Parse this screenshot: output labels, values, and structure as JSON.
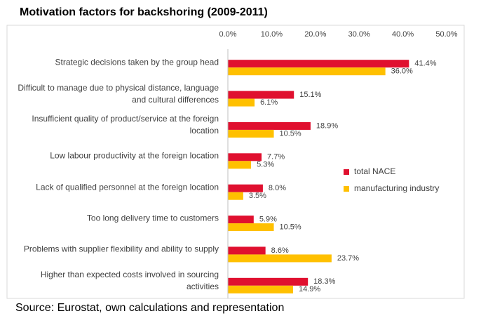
{
  "chart_data": {
    "type": "bar",
    "orientation": "horizontal",
    "title": "Motivation factors for backshoring (2009-2011)",
    "source": "Source: Eurostat, own calculations and representation",
    "categories": [
      "Strategic decisions taken by the group head",
      "Difficult to manage due to physical distance, language and cultural differences",
      "Insufficient quality of product/service at the foreign location",
      "Low labour productivity at the foreign location",
      "Lack of qualified personnel at the foreign location",
      "Too long delivery time to customers",
      "Problems with supplier flexibility and ability to supply",
      "Higher than expected costs involved in sourcing activities"
    ],
    "series": [
      {
        "name": "total NACE",
        "color": "#e0102f",
        "values": [
          41.4,
          15.1,
          18.9,
          7.7,
          8.0,
          5.9,
          8.6,
          18.3
        ],
        "value_labels": [
          "41.4%",
          "15.1%",
          "18.9%",
          "7.7%",
          "8.0%",
          "5.9%",
          "8.6%",
          "18.3%"
        ]
      },
      {
        "name": "manufacturing industry",
        "color": "#ffc000",
        "values": [
          36.0,
          6.1,
          10.5,
          5.3,
          3.5,
          10.5,
          23.7,
          14.9
        ],
        "value_labels": [
          "36.0%",
          "6.1%",
          "10.5%",
          "5.3%",
          "3.5%",
          "10.5%",
          "23.7%",
          "14.9%"
        ]
      }
    ],
    "xlim": [
      0,
      50
    ],
    "xticks": [
      {
        "value": 0,
        "label": "0.0%"
      },
      {
        "value": 10,
        "label": "10.0%"
      },
      {
        "value": 20,
        "label": "20.0%"
      },
      {
        "value": 30,
        "label": "30.0%"
      },
      {
        "value": 40,
        "label": "40.0%"
      },
      {
        "value": 50,
        "label": "50.0%"
      }
    ],
    "legend": "right"
  }
}
